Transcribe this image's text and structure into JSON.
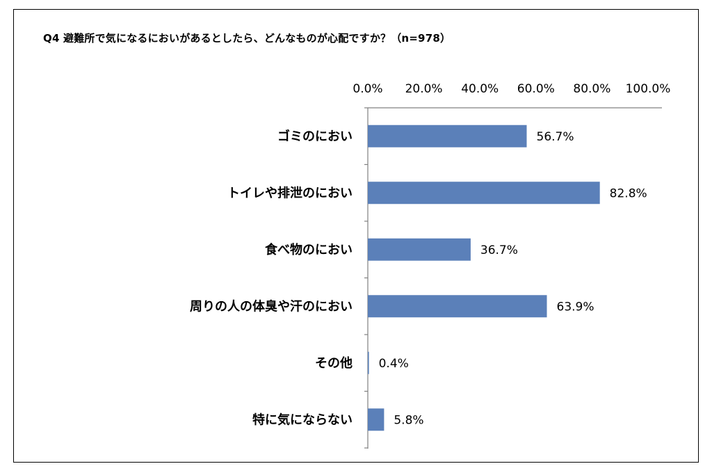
{
  "chart_data": {
    "type": "bar",
    "orientation": "horizontal",
    "title": "Q4 避難所で気になるにおいがあるとしたら、どんなものが心配ですか？（n=978）",
    "categories": [
      "ゴミのにおい",
      "トイレや排泄のにおい",
      "食べ物のにおい",
      "周りの人の体臭や汗のにおい",
      "その他",
      "特に気にならない"
    ],
    "values": [
      56.7,
      82.8,
      36.7,
      63.9,
      0.4,
      5.8
    ],
    "value_labels": [
      "56.7%",
      "82.8%",
      "36.7%",
      "63.9%",
      "0.4%",
      "5.8%"
    ],
    "x_ticks": [
      "0.0%",
      "20.0%",
      "40.0%",
      "60.0%",
      "80.0%",
      "100.0%"
    ],
    "xlim": [
      0,
      100
    ],
    "x_axis_position": "top",
    "grid": false,
    "bar_color": "#5B80B9"
  }
}
